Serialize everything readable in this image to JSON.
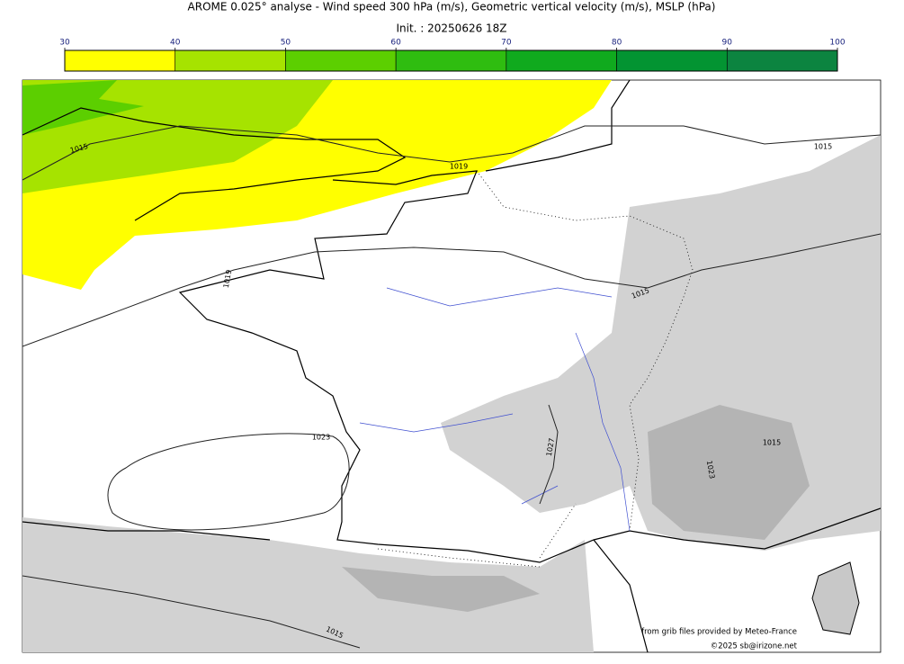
{
  "header": {
    "title": "AROME 0.025° analyse - Wind speed 300 hPa (m/s), Geometric vertical velocity (m/s), MSLP (hPa)",
    "subtitle": "Init. : 20250626 18Z"
  },
  "colorbar": {
    "ticks": [
      30,
      40,
      50,
      60,
      70,
      80,
      90,
      100
    ],
    "colors": [
      "#ffff00",
      "#a6e300",
      "#5ccf00",
      "#2fbd10",
      "#10aa1e",
      "#039432",
      "#0c8440",
      "#0b7550"
    ]
  },
  "map": {
    "isobar_labels": [
      "1015",
      "1019",
      "1015",
      "1019",
      "1015",
      "1023",
      "1027",
      "1023",
      "1015",
      "1015"
    ],
    "credits": [
      "from grib files provided by Meteo-France",
      "©2025 sb@irizone.net"
    ]
  }
}
